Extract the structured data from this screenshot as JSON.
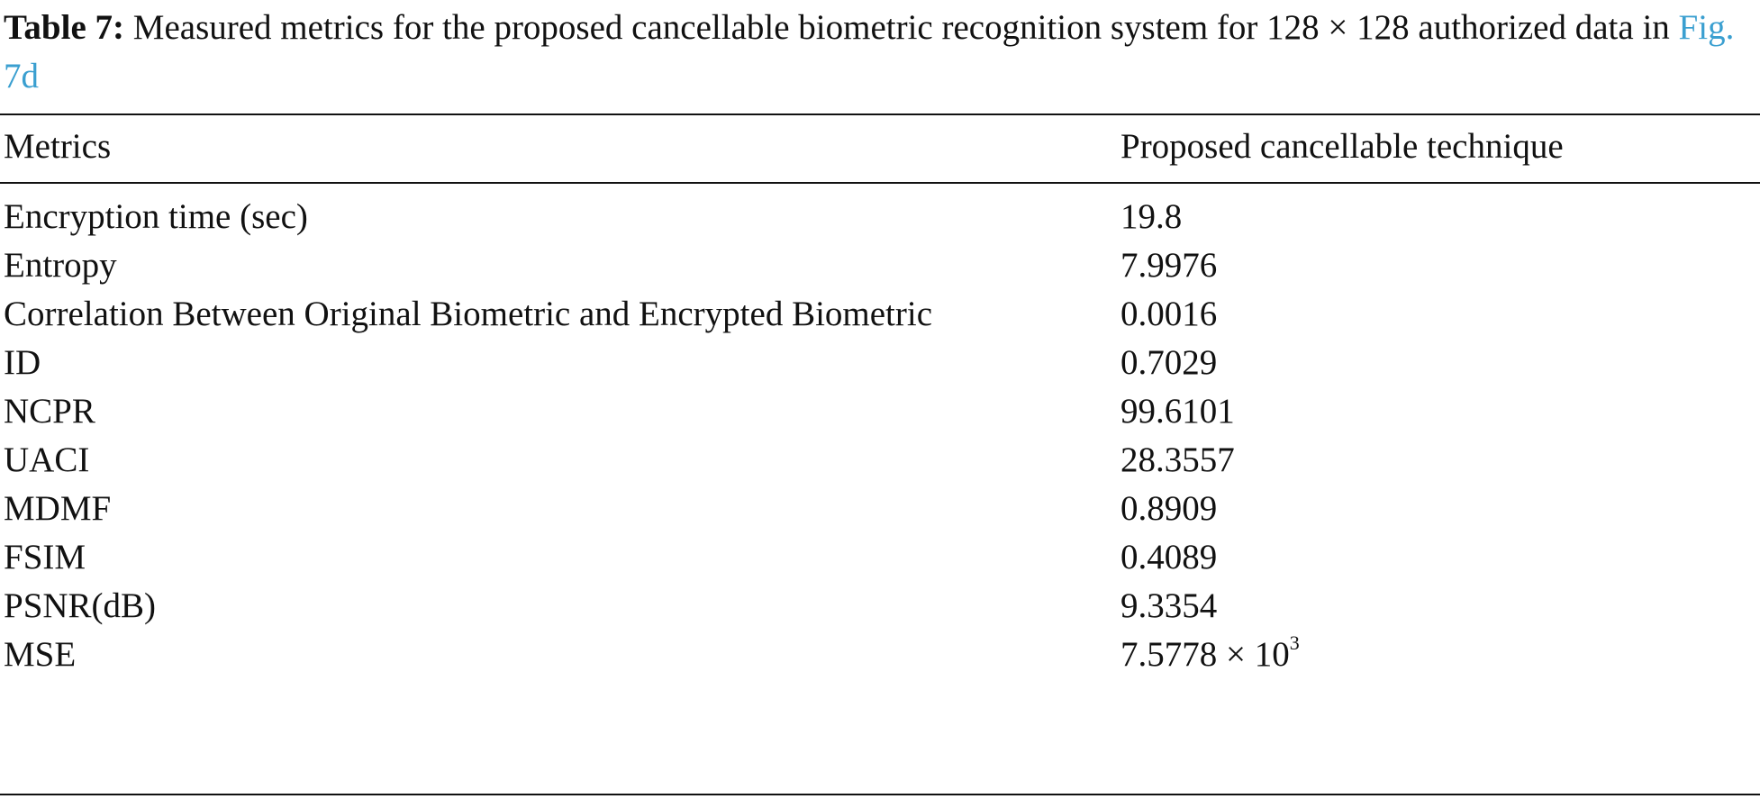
{
  "caption": {
    "label": "Table 7:",
    "text": " Measured metrics for the proposed cancellable biometric recognition system for 128 × 128 authorized data in ",
    "ref": "Fig. 7d"
  },
  "table": {
    "headers": [
      "Metrics",
      "Proposed cancellable technique"
    ],
    "rows": [
      {
        "metric": "Encryption time (sec)",
        "value": "19.8"
      },
      {
        "metric": "Entropy",
        "value": "7.9976"
      },
      {
        "metric": "Correlation Between Original Biometric and Encrypted Biometric",
        "value": "0.0016"
      },
      {
        "metric": "ID",
        "value": "0.7029"
      },
      {
        "metric": "NCPR",
        "value": "99.6101"
      },
      {
        "metric": "UACI",
        "value": "28.3557"
      },
      {
        "metric": "MDMF",
        "value": "0.8909"
      },
      {
        "metric": "FSIM",
        "value": "0.4089"
      },
      {
        "metric": "PSNR(dB)",
        "value": "9.3354"
      },
      {
        "metric": "MSE",
        "value": "7.5778 × 10",
        "value_sup": "3"
      }
    ]
  }
}
